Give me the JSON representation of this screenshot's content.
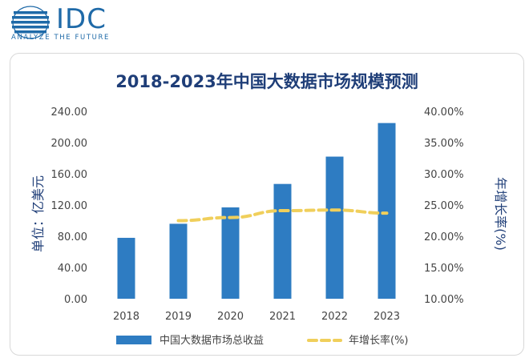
{
  "brand": {
    "name": "IDC",
    "tagline": "ANALYZE THE FUTURE"
  },
  "colors": {
    "bar": "#2e7cc2",
    "line": "#f0cf5b",
    "title": "#1f3e78",
    "axis_text": "#444444"
  },
  "chart_data": {
    "type": "bar",
    "title": "2018-2023年中国大数据市场规模预测",
    "categories": [
      "2018",
      "2019",
      "2020",
      "2021",
      "2022",
      "2023"
    ],
    "ylabel": "单位：亿美元",
    "y2label": "年增长率(%)",
    "ylim": [
      0,
      240
    ],
    "y2lim": [
      10,
      40
    ],
    "yticks": [
      "0.00",
      "40.00",
      "80.00",
      "120.00",
      "160.00",
      "200.00",
      "240.00"
    ],
    "y2ticks": [
      "10.00%",
      "15.00%",
      "20.00%",
      "25.00%",
      "30.00%",
      "35.00%",
      "40.00%"
    ],
    "series": [
      {
        "name": "中国大数据市场总收益",
        "type": "bar",
        "values": [
          78,
          96,
          117,
          147,
          182,
          225
        ]
      },
      {
        "name": "年增长率(%)",
        "type": "line",
        "style": "dashed",
        "axis": "right",
        "values": [
          null,
          22.5,
          23.0,
          24.1,
          24.2,
          23.7
        ]
      }
    ],
    "legend_position": "bottom",
    "grid": false
  }
}
